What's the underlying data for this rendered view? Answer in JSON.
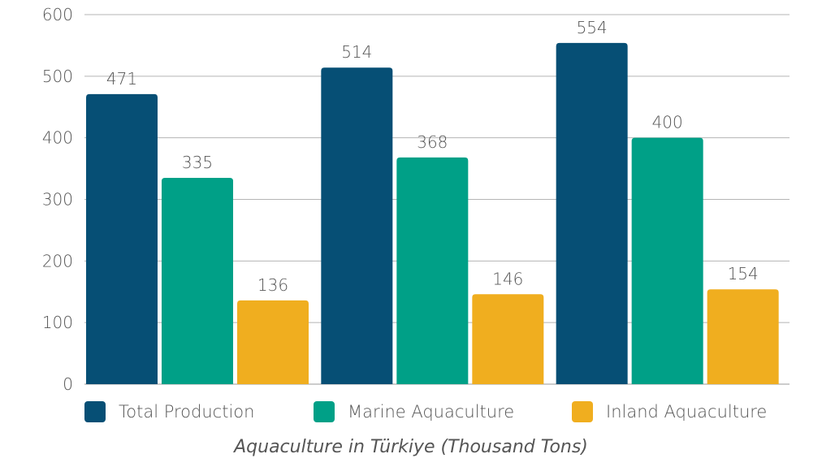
{
  "chart_data": {
    "type": "bar",
    "title": "",
    "caption": "Aquaculture in Türkiye (Thousand Tons)",
    "xlabel": "",
    "ylabel": "",
    "ylim": [
      0,
      600
    ],
    "yticks": [
      0,
      100,
      200,
      300,
      400,
      500,
      600
    ],
    "grid": true,
    "legend_position": "bottom",
    "categories": [
      "",
      "",
      ""
    ],
    "series": [
      {
        "name": "Total Production",
        "color": "#064f75",
        "values": [
          471,
          514,
          554
        ]
      },
      {
        "name": "Marine Aquaculture",
        "color": "#00a087",
        "values": [
          335,
          368,
          400
        ]
      },
      {
        "name": "Inland Aquaculture",
        "color": "#f0ae1f",
        "values": [
          136,
          146,
          154
        ]
      }
    ]
  }
}
